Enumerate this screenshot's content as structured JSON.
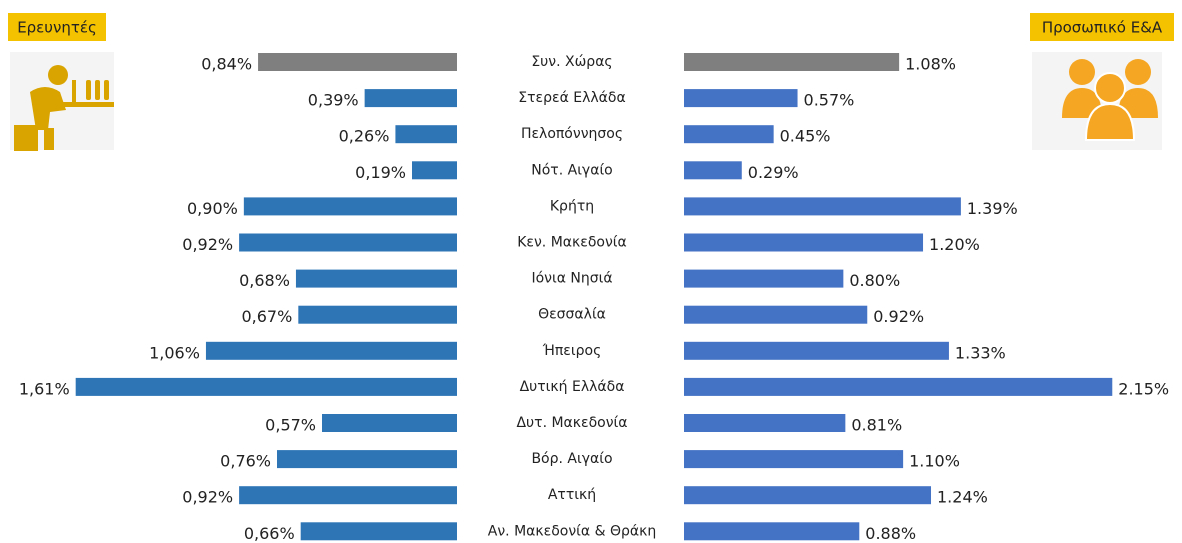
{
  "chart_data": {
    "type": "butterfly",
    "categories": [
      "Συν. Χώρας",
      "Στερεά Ελλάδα",
      "Πελοπόννησος",
      "Νότ. Αιγαίο",
      "Κρήτη",
      "Κεν. Μακεδονία",
      "Ιόνια Νησιά",
      "Θεσσαλία",
      "Ήπειρος",
      "Δυτική Ελλάδα",
      "Δυτ. Μακεδονία",
      "Βόρ. Αιγαίο",
      "Αττική",
      "Αν. Μακεδονία & Θράκη"
    ],
    "series": [
      {
        "name": "Ερευνητές",
        "side": "left",
        "xlim": [
          0,
          1.9
        ],
        "colors": [
          "#7f7f7f",
          "#2e75b6",
          "#2e75b6",
          "#2e75b6",
          "#2e75b6",
          "#2e75b6",
          "#2e75b6",
          "#2e75b6",
          "#2e75b6",
          "#2e75b6",
          "#2e75b6",
          "#2e75b6",
          "#2e75b6",
          "#2e75b6"
        ],
        "values": [
          0.84,
          0.39,
          0.26,
          0.19,
          0.9,
          0.92,
          0.68,
          0.67,
          1.06,
          1.61,
          0.57,
          0.76,
          0.92,
          0.66
        ],
        "value_labels": [
          "0,84%",
          "0,39%",
          "0,26%",
          "0,19%",
          "0,90%",
          "0,92%",
          "0,68%",
          "0,67%",
          "1,06%",
          "1,61%",
          "0,57%",
          "0,76%",
          "0,92%",
          "0,66%"
        ]
      },
      {
        "name": "Προσωπικό Ε&Α",
        "side": "right",
        "xlim": [
          0,
          2.5
        ],
        "colors": [
          "#7f7f7f",
          "#4472c4",
          "#4472c4",
          "#4472c4",
          "#4472c4",
          "#4472c4",
          "#4472c4",
          "#4472c4",
          "#4472c4",
          "#4472c4",
          "#4472c4",
          "#4472c4",
          "#4472c4",
          "#4472c4"
        ],
        "values": [
          1.08,
          0.57,
          0.45,
          0.29,
          1.39,
          1.2,
          0.8,
          0.92,
          1.33,
          2.15,
          0.81,
          1.1,
          1.24,
          0.88
        ],
        "value_labels": [
          "1.08%",
          "0.57%",
          "0.45%",
          "0.29%",
          "1.39%",
          "1.20%",
          "0.80%",
          "0.92%",
          "1.33%",
          "2.15%",
          "0.81%",
          "1.10%",
          "1.24%",
          "0.88%"
        ]
      }
    ]
  }
}
